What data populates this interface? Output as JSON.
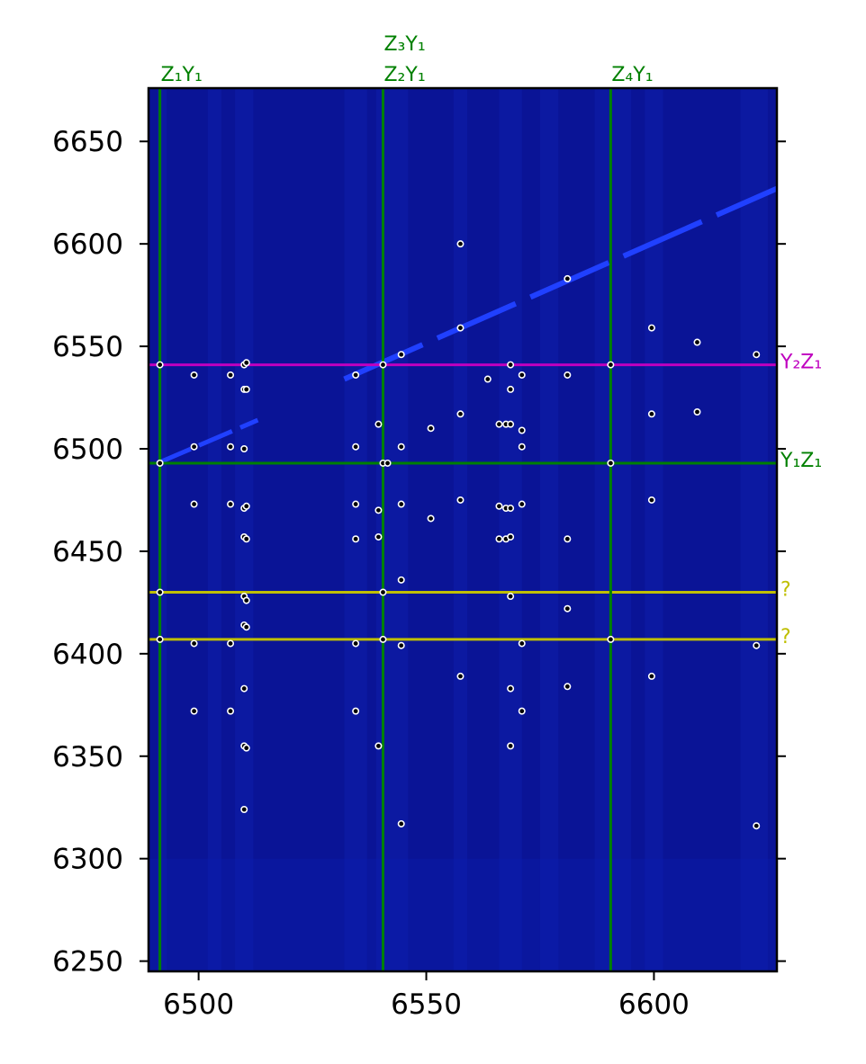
{
  "chart_data": {
    "type": "scatter",
    "title": "",
    "xlabel": "",
    "ylabel": "",
    "xlim": [
      6489,
      6627
    ],
    "ylim": [
      6245,
      6676
    ],
    "x_ticks": [
      6500,
      6550,
      6600
    ],
    "y_ticks": [
      6250,
      6300,
      6350,
      6400,
      6450,
      6500,
      6550,
      6600,
      6650
    ],
    "grid": false,
    "background": "spectrogram (dark blue) with a bright diagonal emission band",
    "colors": {
      "background": "#0a1496",
      "band": "#2040ff",
      "green": "#008000",
      "magenta": "#bf00bf",
      "yellow": "#bfbf00",
      "points_fill": "#000000",
      "points_edge": "#ffffff"
    },
    "diagonal_band": {
      "x": [
        6532,
        6627
      ],
      "y": [
        6534,
        6627
      ]
    },
    "vertical_lines": [
      {
        "x": 6491.5,
        "color": "green",
        "labels": [
          "Z₁Y₁"
        ]
      },
      {
        "x": 6540.5,
        "color": "green",
        "labels": [
          "Z₃Y₁",
          "Z₂Y₁"
        ]
      },
      {
        "x": 6590.5,
        "color": "green",
        "labels": [
          "Z₄Y₁"
        ]
      }
    ],
    "horizontal_lines": [
      {
        "y": 6541,
        "color": "magenta",
        "label": "Y₂Z₁"
      },
      {
        "y": 6493,
        "color": "green",
        "label": "Y₁Z₁"
      },
      {
        "y": 6430,
        "color": "yellow",
        "label": "?"
      },
      {
        "y": 6407,
        "color": "yellow",
        "label": "?"
      }
    ],
    "points": [
      [
        6491.5,
        6541
      ],
      [
        6491.5,
        6493
      ],
      [
        6491.5,
        6430
      ],
      [
        6491.5,
        6407
      ],
      [
        6499,
        6536
      ],
      [
        6499,
        6501
      ],
      [
        6499,
        6473
      ],
      [
        6499,
        6405
      ],
      [
        6499,
        6372
      ],
      [
        6507,
        6536
      ],
      [
        6507,
        6501
      ],
      [
        6507,
        6473
      ],
      [
        6507,
        6405
      ],
      [
        6507,
        6372
      ],
      [
        6510,
        6541
      ],
      [
        6510.5,
        6542
      ],
      [
        6510,
        6529
      ],
      [
        6510.5,
        6529
      ],
      [
        6510,
        6500
      ],
      [
        6510,
        6471
      ],
      [
        6510.5,
        6472
      ],
      [
        6510,
        6457
      ],
      [
        6510.5,
        6456
      ],
      [
        6510,
        6428
      ],
      [
        6510.5,
        6426
      ],
      [
        6510,
        6414
      ],
      [
        6510.5,
        6413
      ],
      [
        6510,
        6383
      ],
      [
        6510,
        6355
      ],
      [
        6510.5,
        6354
      ],
      [
        6510,
        6324
      ],
      [
        6534.5,
        6536
      ],
      [
        6534.5,
        6501
      ],
      [
        6534.5,
        6473
      ],
      [
        6534.5,
        6456
      ],
      [
        6534.5,
        6405
      ],
      [
        6534.5,
        6372
      ],
      [
        6539.5,
        6512
      ],
      [
        6539.5,
        6470
      ],
      [
        6539.5,
        6457
      ],
      [
        6539.5,
        6355
      ],
      [
        6540.5,
        6541
      ],
      [
        6540.5,
        6493
      ],
      [
        6541.5,
        6493
      ],
      [
        6540.5,
        6430
      ],
      [
        6540.5,
        6407
      ],
      [
        6544.5,
        6546
      ],
      [
        6544.5,
        6501
      ],
      [
        6544.5,
        6473
      ],
      [
        6544.5,
        6436
      ],
      [
        6544.5,
        6404
      ],
      [
        6544.5,
        6317
      ],
      [
        6551,
        6510
      ],
      [
        6551,
        6466
      ],
      [
        6557.5,
        6600
      ],
      [
        6557.5,
        6559
      ],
      [
        6557.5,
        6517
      ],
      [
        6557.5,
        6475
      ],
      [
        6557.5,
        6389
      ],
      [
        6563.5,
        6534
      ],
      [
        6566,
        6512
      ],
      [
        6566,
        6472
      ],
      [
        6566,
        6456
      ],
      [
        6567.5,
        6512
      ],
      [
        6567.5,
        6471
      ],
      [
        6567.5,
        6456
      ],
      [
        6568.5,
        6541
      ],
      [
        6568.5,
        6529
      ],
      [
        6568.5,
        6512
      ],
      [
        6568.5,
        6471
      ],
      [
        6568.5,
        6457
      ],
      [
        6568.5,
        6428
      ],
      [
        6568.5,
        6383
      ],
      [
        6568.5,
        6355
      ],
      [
        6571,
        6536
      ],
      [
        6571,
        6509
      ],
      [
        6571,
        6501
      ],
      [
        6571,
        6473
      ],
      [
        6571,
        6405
      ],
      [
        6571,
        6372
      ],
      [
        6581,
        6583
      ],
      [
        6581,
        6536
      ],
      [
        6581,
        6456
      ],
      [
        6581,
        6422
      ],
      [
        6581,
        6384
      ],
      [
        6590.5,
        6541
      ],
      [
        6590.5,
        6493
      ],
      [
        6590.5,
        6407
      ],
      [
        6599.5,
        6559
      ],
      [
        6599.5,
        6517
      ],
      [
        6599.5,
        6475
      ],
      [
        6599.5,
        6389
      ],
      [
        6609.5,
        6552
      ],
      [
        6609.5,
        6518
      ],
      [
        6622.5,
        6546
      ],
      [
        6622.5,
        6404
      ],
      [
        6622.5,
        6316
      ]
    ]
  }
}
